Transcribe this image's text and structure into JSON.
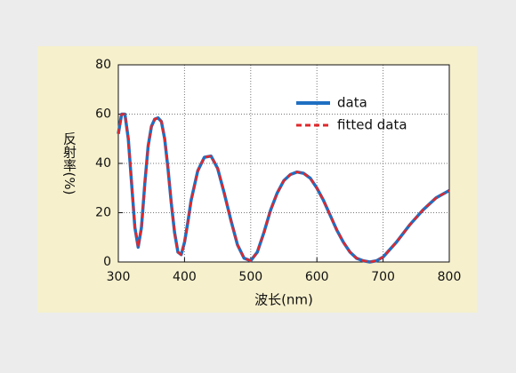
{
  "chart_data": {
    "type": "line",
    "xlabel": "波长(nm)",
    "ylabel": "反射率(%)",
    "x": [
      300,
      305,
      310,
      315,
      320,
      325,
      330,
      335,
      340,
      345,
      350,
      355,
      360,
      365,
      370,
      375,
      380,
      385,
      390,
      395,
      400,
      405,
      410,
      420,
      430,
      440,
      450,
      460,
      470,
      480,
      490,
      500,
      510,
      520,
      530,
      540,
      550,
      560,
      570,
      580,
      590,
      600,
      610,
      620,
      630,
      640,
      650,
      660,
      670,
      680,
      690,
      700,
      720,
      740,
      760,
      780,
      800
    ],
    "series": [
      {
        "name": "data",
        "color": "#1f6fc2",
        "values": [
          52,
          60,
          60,
          50,
          32,
          14,
          6,
          14,
          32,
          47,
          55,
          58,
          58.5,
          57,
          50,
          38,
          24,
          12,
          4,
          3,
          8,
          16,
          25,
          37,
          42.5,
          43,
          38,
          28,
          17,
          7,
          1.5,
          0.5,
          4,
          12,
          21,
          28,
          33,
          35.5,
          36.5,
          36,
          34,
          30,
          25,
          19,
          13,
          8,
          4,
          1.5,
          0.5,
          0,
          0.5,
          2,
          8,
          15,
          21,
          26,
          29
        ]
      },
      {
        "name": "fitted data",
        "color": "#e0282c",
        "values": [
          52,
          60,
          60,
          50,
          32,
          14,
          6,
          14,
          32,
          47,
          55,
          58,
          58.5,
          57,
          50,
          38,
          24,
          12,
          4,
          3,
          8,
          16,
          25,
          37,
          42.5,
          43,
          38,
          28,
          17,
          7,
          1.5,
          0.5,
          4,
          12,
          21,
          28,
          33,
          35.5,
          36.5,
          36,
          34,
          30,
          25,
          19,
          13,
          8,
          4,
          1.5,
          0.5,
          0,
          0.5,
          2,
          8,
          15,
          21,
          26,
          29
        ]
      }
    ],
    "xlim": [
      300,
      800
    ],
    "xticks": [
      300,
      400,
      500,
      600,
      700,
      800
    ],
    "ylim": [
      0,
      80
    ],
    "yticks": [
      0,
      20,
      40,
      60,
      80
    ],
    "grid": true,
    "legend": "upper right"
  }
}
